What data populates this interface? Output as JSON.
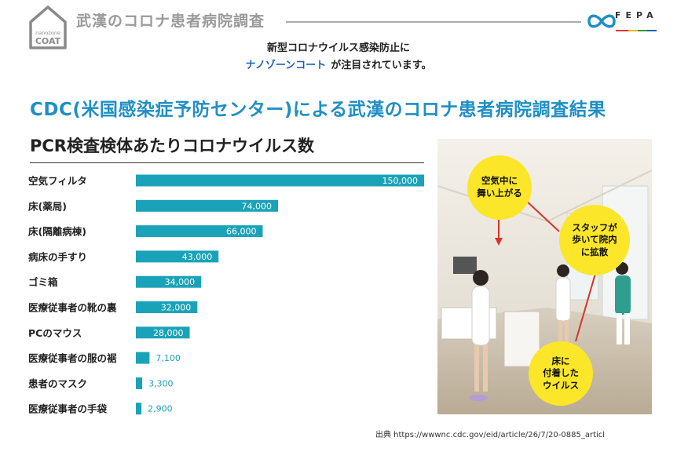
{
  "header": {
    "logo_small": "nanozone",
    "logo_big": "COAT",
    "title": "武漢のコロナ患者病院調査",
    "brand": "FEPA"
  },
  "intro": {
    "line1": "新型コロナウイルス感染防止に",
    "line2_highlight": "ナノゾーンコート",
    "line2_rest": "が注目されています。"
  },
  "main_title": "CDC(米国感染症予防センター)による武漢のコロナ患者病院調査結果",
  "chart_title": "PCR検査検体あたりコロナウイルス数",
  "chart_data": {
    "type": "bar",
    "orientation": "horizontal",
    "title": "PCR検査検体あたりコロナウイルス数",
    "categories": [
      "空気フィルタ",
      "床(薬局)",
      "床(隔離病棟)",
      "病床の手すり",
      "ゴミ箱",
      "医療従事者の靴の裏",
      "PCのマウス",
      "医療従事者の服の裾",
      "患者のマスク",
      "医療従事者の手袋"
    ],
    "values": [
      150000,
      74000,
      66000,
      43000,
      34000,
      32000,
      28000,
      7100,
      3300,
      2900
    ],
    "value_labels": [
      "150,000",
      "74,000",
      "66,000",
      "43,000",
      "34,000",
      "32,000",
      "28,000",
      "7,100",
      "3,300",
      "2,900"
    ],
    "xlim": [
      0,
      150000
    ],
    "bar_color": "#1aa3b8",
    "grid": false
  },
  "photo": {
    "bubble_air": [
      "空気中に",
      "舞い上がる"
    ],
    "bubble_staff": [
      "スタッフが",
      "歩いて院内",
      "に拡散"
    ],
    "bubble_floor": [
      "床に",
      "付着した",
      "ウイルス"
    ]
  },
  "source": "出典 https://wwwnc.cdc.gov/eid/article/26/7/20-0885_articl"
}
